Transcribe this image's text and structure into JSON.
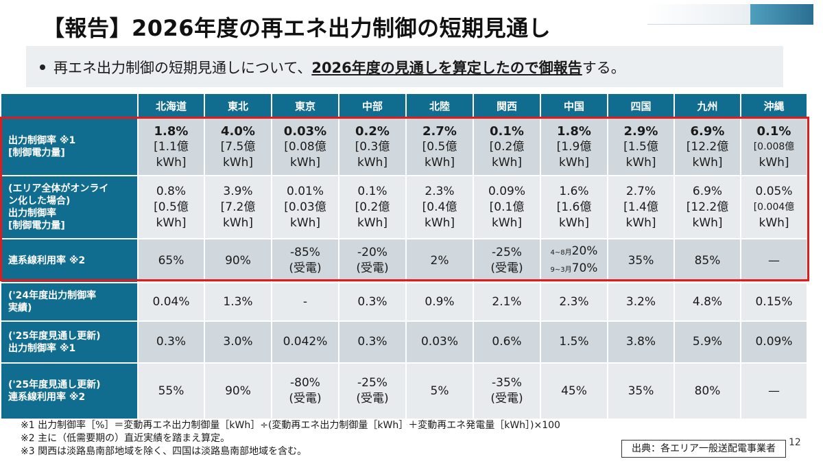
{
  "title": "【報告】2026年度の再エネ出力制御の短期見通し",
  "bullet": {
    "pre": "再エネ出力制御の短期見通しについて、",
    "emph": "2026年度の見通しを算定したので御報告",
    "post": "する。"
  },
  "table": {
    "regions": [
      "北海道",
      "東北",
      "東京",
      "中部",
      "北陸",
      "関西",
      "中国",
      "四国",
      "九州",
      "沖縄"
    ],
    "row1": {
      "head": [
        "出力制御率 ※1",
        "[制御電力量]"
      ],
      "cells": [
        [
          "1.8%",
          "[1.1億",
          "kWh]"
        ],
        [
          "4.0%",
          "[7.5億",
          "kWh]"
        ],
        [
          "0.03%",
          "[0.08億",
          "kWh]"
        ],
        [
          "0.2%",
          "[0.3億",
          "kWh]"
        ],
        [
          "2.7%",
          "[0.5億",
          "kWh]"
        ],
        [
          "0.1%",
          "[0.2億",
          "kWh]"
        ],
        [
          "1.8%",
          "[1.9億",
          "kWh]"
        ],
        [
          "2.9%",
          "[1.5億",
          "kWh]"
        ],
        [
          "6.9%",
          "[12.2億",
          "kWh]"
        ],
        [
          "0.1%",
          "[0.008億",
          "kWh]"
        ]
      ]
    },
    "row2": {
      "head": [
        "(エリア全体がオンライ",
        "ン化した場合)",
        "出力制御率",
        "[制御電力量]"
      ],
      "cells": [
        [
          "0.8%",
          "[0.5億",
          "kWh]"
        ],
        [
          "3.9%",
          "[7.2億",
          "kWh]"
        ],
        [
          "0.01%",
          "[0.03億",
          "kWh]"
        ],
        [
          "0.1%",
          "[0.2億",
          "kWh]"
        ],
        [
          "2.3%",
          "[0.4億",
          "kWh]"
        ],
        [
          "0.09%",
          "[0.1億",
          "kWh]"
        ],
        [
          "1.6%",
          "[1.6億",
          "kWh]"
        ],
        [
          "2.7%",
          "[1.4億",
          "kWh]"
        ],
        [
          "6.9%",
          "[12.2億",
          "kWh]"
        ],
        [
          "0.05%",
          "[0.004億",
          "kWh]"
        ]
      ]
    },
    "row3": {
      "head": "連系線利用率 ※2",
      "hokkaido": "65%",
      "tohoku": "90%",
      "tokyo": [
        "-85%",
        "(受電)"
      ],
      "chubu": [
        "-20%",
        "(受電)"
      ],
      "hokuriku": "2%",
      "kansai": [
        "-25%",
        "(受電)"
      ],
      "chugoku": [
        [
          "4~8月",
          "20%"
        ],
        [
          "9~3月",
          "70%"
        ]
      ],
      "shikoku": "35%",
      "kyushu": "85%",
      "okinawa": "—"
    },
    "row4": {
      "head": [
        "('24年度出力制御率",
        "実績)"
      ],
      "cells": [
        "0.04%",
        "1.3%",
        "-",
        "0.3%",
        "0.9%",
        "2.1%",
        "2.3%",
        "3.2%",
        "4.8%",
        "0.15%"
      ]
    },
    "row5": {
      "head": [
        "('25年度見通し更新)",
        "出力制御率 ※1"
      ],
      "cells": [
        "0.3%",
        "3.0%",
        "0.042%",
        "0.3%",
        "0.03%",
        "0.6%",
        "1.5%",
        "3.8%",
        "5.9%",
        "0.09%"
      ]
    },
    "row6": {
      "head": [
        "('25年度見通し更新)",
        "連系線利用率 ※2"
      ],
      "hokkaido": "55%",
      "tohoku": "90%",
      "tokyo": [
        "-80%",
        "(受電)"
      ],
      "chubu": [
        "-25%",
        "(受電)"
      ],
      "hokuriku": "5%",
      "kansai": [
        "-35%",
        "(受電)"
      ],
      "chugoku": "45%",
      "shikoku": "35%",
      "kyushu": "80%",
      "okinawa": "—"
    }
  },
  "notes": [
    "※1 出力制御率［%］＝変動再エネ出力制御量［kWh］÷(変動再エネ出力制御量［kWh］＋変動再エネ発電量［kWh］)×100",
    "※2 主に（低需要期の）直近実績を踏まえ算定。",
    "※3 関西は淡路島南部地域を除く、四国は淡路島南部地域を含む。"
  ],
  "source": "出典：各エリア一般送配電事業者",
  "page_number": "12",
  "colors": {
    "header": "#116d8f",
    "highlight": "#e01b1b"
  }
}
